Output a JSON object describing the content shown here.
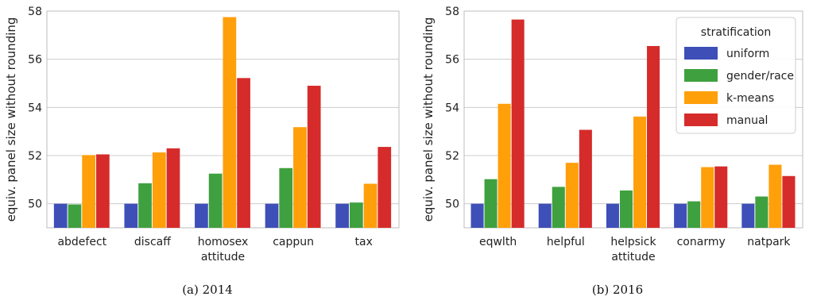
{
  "colors": {
    "uniform": "#3e4fb8",
    "gender/race": "#3fa03f",
    "k-means": "#ff9f0a",
    "manual": "#d62b2b"
  },
  "legend": {
    "title": "stratification",
    "placement": "top-right of panel b"
  },
  "chart_data": [
    {
      "type": "bar",
      "caption": "(a) 2014",
      "ylabel": "equiv. panel size without rounding",
      "ylim": [
        49,
        58
      ],
      "yticks": [
        50,
        52,
        54,
        56,
        58
      ],
      "grid": "horizontal",
      "categories": [
        [
          "abdefect"
        ],
        [
          "discaff"
        ],
        [
          "homosex",
          "attitude"
        ],
        [
          "cappun"
        ],
        [
          "tax"
        ]
      ],
      "series": [
        {
          "name": "uniform",
          "values": [
            50.0,
            50.0,
            50.0,
            50.0,
            50.0
          ]
        },
        {
          "name": "gender/race",
          "values": [
            49.97,
            50.85,
            51.25,
            51.48,
            50.05
          ]
        },
        {
          "name": "k-means",
          "values": [
            52.02,
            52.13,
            57.75,
            53.18,
            50.83
          ]
        },
        {
          "name": "manual",
          "values": [
            52.05,
            52.3,
            55.22,
            54.9,
            52.36
          ]
        }
      ]
    },
    {
      "type": "bar",
      "caption": "(b) 2016",
      "ylabel": "equiv. panel size without rounding",
      "ylim": [
        49,
        58
      ],
      "yticks": [
        50,
        52,
        54,
        56,
        58
      ],
      "grid": "horizontal",
      "categories": [
        [
          "eqwlth"
        ],
        [
          "helpful"
        ],
        [
          "helpsick",
          "attitude"
        ],
        [
          "conarmy"
        ],
        [
          "natpark"
        ]
      ],
      "series": [
        {
          "name": "uniform",
          "values": [
            50.0,
            50.0,
            50.0,
            50.0,
            50.0
          ]
        },
        {
          "name": "gender/race",
          "values": [
            51.02,
            50.7,
            50.55,
            50.1,
            50.3
          ]
        },
        {
          "name": "k-means",
          "values": [
            54.15,
            51.7,
            53.62,
            51.52,
            51.62
          ]
        },
        {
          "name": "manual",
          "values": [
            57.65,
            53.07,
            56.55,
            51.55,
            51.15
          ]
        }
      ]
    }
  ]
}
